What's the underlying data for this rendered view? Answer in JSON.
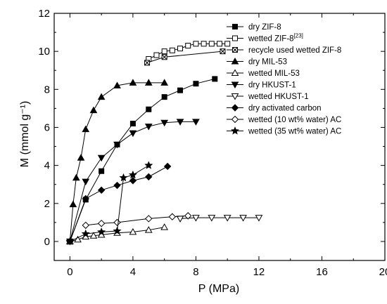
{
  "chart_data": {
    "type": "scatter",
    "xlabel": "P (MPa)",
    "ylabel": "M (mmol g⁻¹)",
    "xlim": [
      -1,
      20
    ],
    "ylim": [
      -1,
      12
    ],
    "xticks": [
      0,
      4,
      8,
      12,
      16,
      20
    ],
    "yticks": [
      0,
      2,
      4,
      6,
      8,
      10,
      12
    ],
    "grid": false,
    "legend_position": "top-right",
    "series": [
      {
        "name": "dry ZIF-8",
        "marker": "square-filled",
        "x": [
          0,
          1,
          2,
          3,
          4,
          5,
          6,
          7,
          8,
          9.2
        ],
        "y": [
          0,
          2.2,
          3.7,
          5.1,
          6.2,
          6.95,
          7.6,
          7.95,
          8.3,
          8.55
        ]
      },
      {
        "name": "wetted ZIF-8",
        "name_sup": "[23]",
        "marker": "square-open",
        "x": [
          5,
          5.5,
          6,
          6.5,
          7,
          7.5,
          8,
          8.5,
          9,
          9.5,
          10
        ],
        "y": [
          9.6,
          9.8,
          10.0,
          10.05,
          10.15,
          10.3,
          10.4,
          10.4,
          10.4,
          10.4,
          10.4
        ]
      },
      {
        "name": "recycle used wetted ZIF-8",
        "marker": "square-crossed",
        "x": [
          4.9,
          6,
          9.7
        ],
        "y": [
          9.4,
          9.7,
          10.0
        ]
      },
      {
        "name": "dry MIL-53",
        "marker": "triangle-up-filled",
        "x": [
          0,
          0.2,
          0.4,
          0.7,
          1,
          1.5,
          2,
          3,
          4,
          5,
          6
        ],
        "y": [
          0,
          1.95,
          3.35,
          4.4,
          5.9,
          6.9,
          7.6,
          8.2,
          8.35,
          8.35,
          8.35
        ]
      },
      {
        "name": "wetted MIL-53",
        "marker": "triangle-up-open",
        "x": [
          0,
          0.5,
          1,
          1.5,
          2,
          3,
          4,
          5,
          6
        ],
        "y": [
          0,
          0.1,
          0.25,
          0.3,
          0.35,
          0.45,
          0.5,
          0.6,
          0.75
        ]
      },
      {
        "name": "dry HKUST-1",
        "marker": "triangle-down-filled",
        "x": [
          0,
          1,
          2,
          3,
          4,
          5,
          6,
          7,
          8
        ],
        "y": [
          0,
          3.15,
          4.4,
          5.1,
          5.7,
          6.05,
          6.25,
          6.3,
          6.3
        ]
      },
      {
        "name": "wetted HKUST-1",
        "marker": "triangle-down-open",
        "x": [
          7,
          8,
          9,
          10,
          11,
          12
        ],
        "y": [
          1.2,
          1.25,
          1.25,
          1.25,
          1.25,
          1.25
        ]
      },
      {
        "name": "dry activated carbon",
        "marker": "diamond-filled",
        "x": [
          0,
          1,
          2,
          3,
          4,
          5,
          6.2
        ],
        "y": [
          0,
          2.25,
          2.7,
          2.95,
          3.2,
          3.4,
          3.95
        ]
      },
      {
        "name": "wetted (10 wt% water) AC",
        "marker": "diamond-open",
        "x": [
          1,
          2,
          3,
          5,
          6.5,
          7.5
        ],
        "y": [
          0.85,
          0.95,
          1.0,
          1.2,
          1.3,
          1.35
        ]
      },
      {
        "name": "wetted (35 wt% water) AC",
        "marker": "star-filled",
        "x": [
          0,
          1,
          2,
          3,
          3.4,
          4,
          5
        ],
        "y": [
          0,
          0.4,
          0.5,
          0.55,
          3.35,
          3.5,
          4.0
        ]
      }
    ]
  }
}
